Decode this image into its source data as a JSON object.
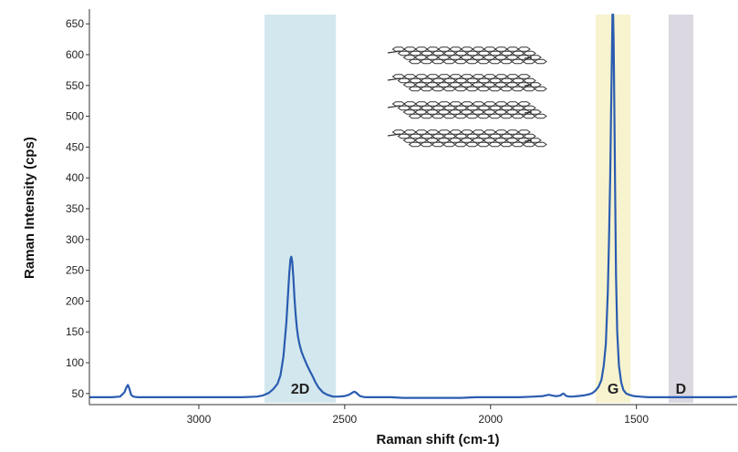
{
  "chart_data": {
    "type": "line",
    "xlabel": "Raman shift (cm-1)",
    "ylabel": "Raman Intensity (cps)",
    "x_reversed": true,
    "xlim": [
      3375,
      1155
    ],
    "ylim": [
      35,
      665
    ],
    "xticks": [
      3000,
      2500,
      2000,
      1500
    ],
    "yticks": [
      50,
      100,
      150,
      200,
      250,
      300,
      350,
      400,
      450,
      500,
      550,
      600,
      650
    ],
    "grid": false,
    "line_color": "#2a5cb0",
    "bands": [
      {
        "label": "2D",
        "from": 2775,
        "to": 2530,
        "color": "#d3e8ee"
      },
      {
        "label": "G",
        "from": 1640,
        "to": 1520,
        "color": "#f7f3cf"
      },
      {
        "label": "D",
        "from": 1390,
        "to": 1305,
        "color": "#dcd8e2"
      }
    ],
    "series": [
      {
        "x": [
          3375,
          3340,
          3300,
          3270,
          3255,
          3248,
          3243,
          3238,
          3232,
          3225,
          3210,
          3180,
          3120,
          3050,
          3000,
          2950,
          2900,
          2850,
          2800,
          2780,
          2760,
          2745,
          2730,
          2720,
          2710,
          2700,
          2695,
          2690,
          2686,
          2683,
          2680,
          2676,
          2672,
          2668,
          2664,
          2660,
          2655,
          2648,
          2640,
          2630,
          2620,
          2610,
          2600,
          2590,
          2575,
          2560,
          2540,
          2520,
          2500,
          2485,
          2475,
          2468,
          2462,
          2455,
          2448,
          2440,
          2430,
          2410,
          2380,
          2340,
          2300,
          2250,
          2200,
          2150,
          2100,
          2050,
          2000,
          1950,
          1900,
          1850,
          1820,
          1800,
          1790,
          1780,
          1770,
          1760,
          1755,
          1750,
          1745,
          1740,
          1730,
          1720,
          1700,
          1680,
          1660,
          1650,
          1640,
          1630,
          1620,
          1612,
          1605,
          1598,
          1594,
          1590,
          1587,
          1584,
          1582,
          1580,
          1578,
          1576,
          1573,
          1570,
          1566,
          1560,
          1552,
          1545,
          1535,
          1525,
          1510,
          1490,
          1460,
          1420,
          1380,
          1340,
          1300,
          1260,
          1220,
          1180,
          1155
        ],
        "values": [
          44,
          44,
          44,
          45,
          52,
          60,
          64,
          58,
          48,
          45,
          44,
          44,
          44,
          44,
          44,
          44,
          44,
          44,
          45,
          47,
          51,
          57,
          66,
          80,
          110,
          165,
          205,
          245,
          268,
          272,
          265,
          238,
          205,
          178,
          157,
          142,
          130,
          118,
          108,
          97,
          87,
          78,
          68,
          60,
          52,
          48,
          45,
          45,
          46,
          48,
          51,
          53,
          52,
          49,
          46,
          45,
          44,
          44,
          44,
          44,
          43,
          43,
          43,
          43,
          43,
          44,
          44,
          44,
          44,
          45,
          46,
          48,
          47,
          46,
          46,
          47,
          49,
          50,
          48,
          46,
          45,
          45,
          46,
          47,
          49,
          51,
          55,
          61,
          72,
          95,
          130,
          215,
          300,
          400,
          500,
          600,
          665,
          665,
          620,
          520,
          380,
          240,
          150,
          95,
          68,
          56,
          50,
          48,
          46,
          45,
          44,
          44,
          44,
          44,
          44,
          44,
          44,
          44,
          45
        ]
      }
    ]
  }
}
